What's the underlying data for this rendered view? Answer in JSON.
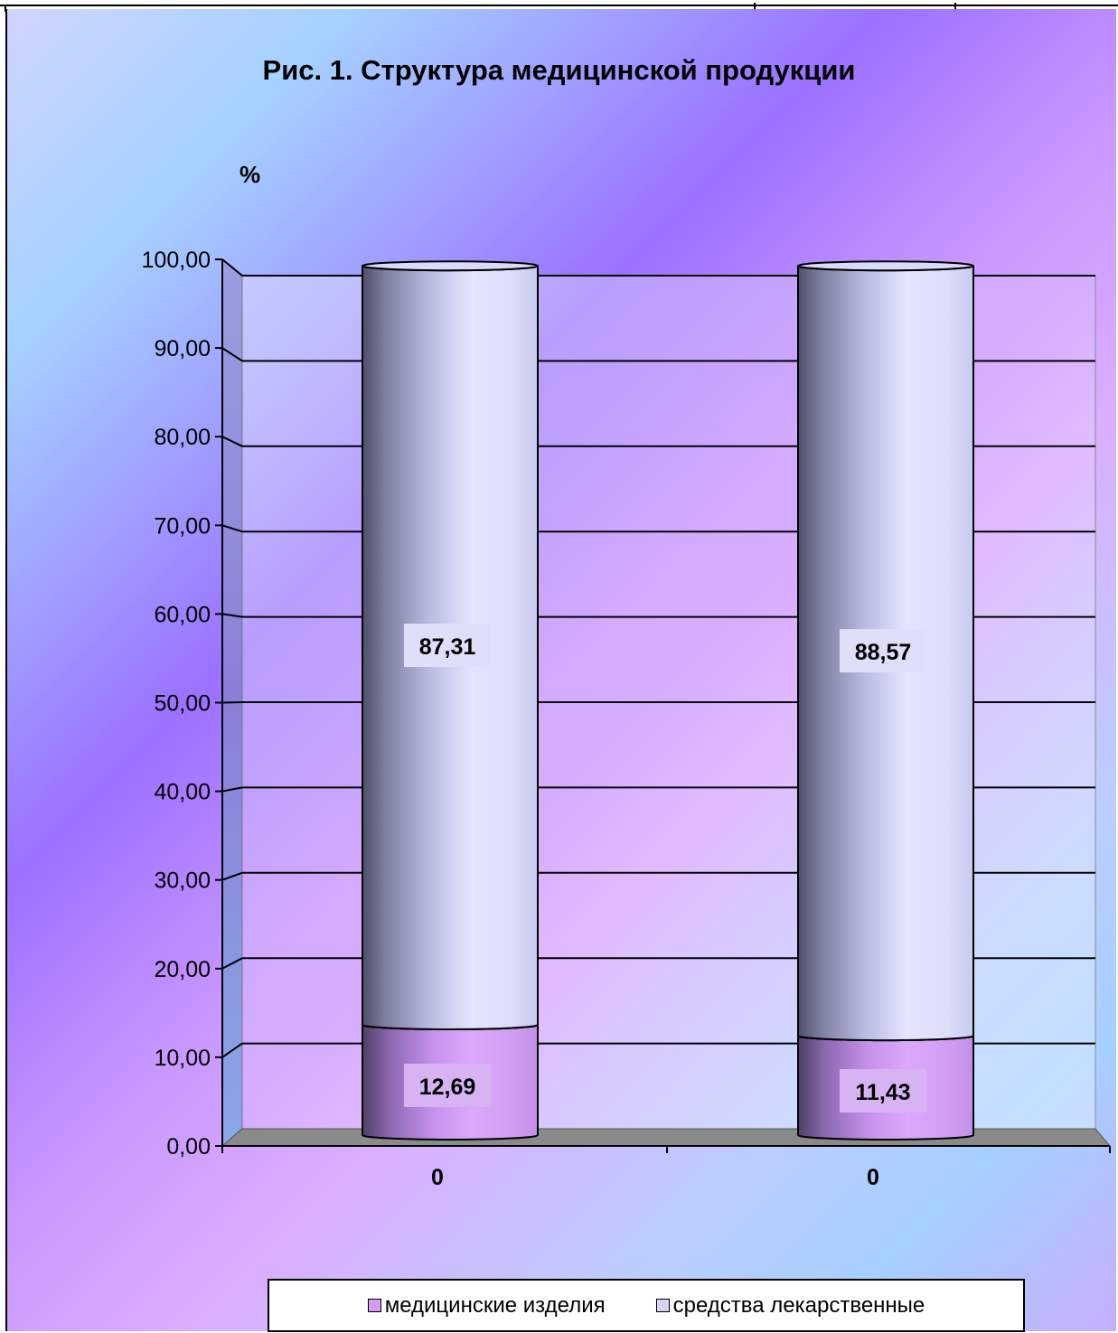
{
  "chart_data": {
    "type": "bar",
    "stacked": true,
    "shape": "cylinder-3d",
    "title": "Рис. 1. Структура медицинской продукции",
    "ylabel": "%",
    "xlabel": "",
    "ylim": [
      0,
      100
    ],
    "yticks": [
      "0,00",
      "10,00",
      "20,00",
      "30,00",
      "40,00",
      "50,00",
      "60,00",
      "70,00",
      "80,00",
      "90,00",
      "100,00"
    ],
    "categories": [
      "0",
      "0"
    ],
    "series": [
      {
        "name": "медицинские изделия",
        "values": [
          12.69,
          11.43
        ],
        "labels": [
          "12,69",
          "11,43"
        ],
        "color": "#d59cf5"
      },
      {
        "name": "средства лекарственные",
        "values": [
          87.31,
          88.57
        ],
        "labels": [
          "87,31",
          "88,57"
        ],
        "color": "#d4d6f8"
      }
    ],
    "grid": true,
    "legend_position": "bottom"
  }
}
